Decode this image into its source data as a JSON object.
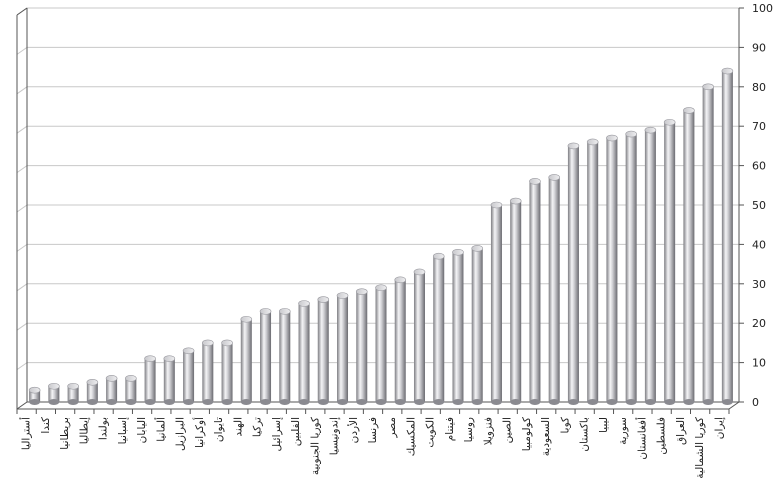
{
  "chart_data": {
    "type": "bar",
    "title": "",
    "xlabel": "",
    "ylabel": "",
    "ylim": [
      0,
      100
    ],
    "yticks": [
      0,
      10,
      20,
      30,
      40,
      50,
      60,
      70,
      80,
      90,
      100
    ],
    "y_axis_position": "right",
    "grid": true,
    "legend": "none",
    "bar_style": "3d-cylinder",
    "bar_color": "#b8b8bc",
    "categories": [
      "أستراليا",
      "كندا",
      "بريطانيا",
      "إيطاليا",
      "بولندا",
      "إسبانيا",
      "اليابان",
      "ألمانيا",
      "البرازيل",
      "أوكرانيا",
      "تايوان",
      "الهند",
      "تركيا",
      "إسرائيل",
      "الفلبين",
      "كوريا الجنوبية",
      "إندونيسيا",
      "الأردن",
      "فرنسا",
      "مصر",
      "المكسيك",
      "الكويت",
      "فيتنام",
      "روسيا",
      "فنزويلا",
      "الصين",
      "كولومبيا",
      "السعودية",
      "كوبا",
      "باكستان",
      "ليبيا",
      "سورية",
      "أفغانستان",
      "فلسطين",
      "العراق",
      "كوريا الشمالية",
      "إيران"
    ],
    "values": [
      3,
      4,
      4,
      5,
      6,
      6,
      11,
      11,
      13,
      15,
      15,
      21,
      23,
      23,
      25,
      26,
      27,
      28,
      29,
      31,
      33,
      37,
      38,
      39,
      50,
      51,
      56,
      57,
      65,
      66,
      67,
      68,
      69,
      71,
      74,
      80,
      84
    ]
  }
}
